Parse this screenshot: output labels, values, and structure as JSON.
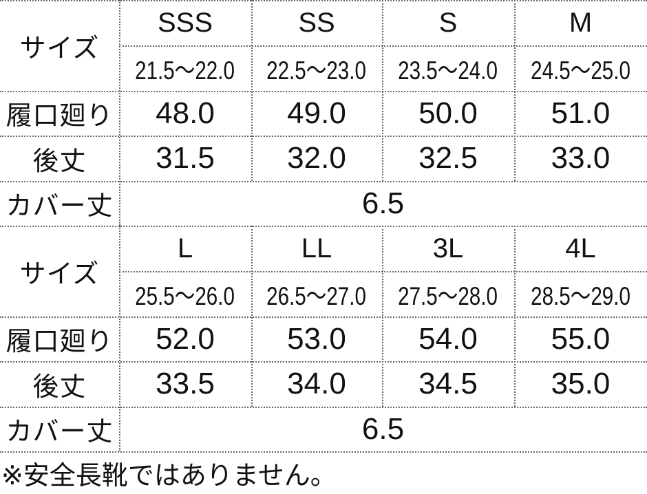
{
  "labels": {
    "size": "サイズ",
    "opening": "履口廻り",
    "back_height": "後丈",
    "cover_height": "カバー丈"
  },
  "blocks": [
    {
      "sizes": [
        "SSS",
        "SS",
        "S",
        "M"
      ],
      "ranges": [
        "21.5～22.0",
        "22.5～23.0",
        "23.5～24.0",
        "24.5～25.0"
      ],
      "opening": [
        "48.0",
        "49.0",
        "50.0",
        "51.0"
      ],
      "back_height": [
        "31.5",
        "32.0",
        "32.5",
        "33.0"
      ],
      "cover_height": "6.5"
    },
    {
      "sizes": [
        "L",
        "LL",
        "3L",
        "4L"
      ],
      "ranges": [
        "25.5～26.0",
        "26.5～27.0",
        "27.5～28.0",
        "28.5～29.0"
      ],
      "opening": [
        "52.0",
        "53.0",
        "54.0",
        "55.0"
      ],
      "back_height": [
        "33.5",
        "34.0",
        "34.5",
        "35.0"
      ],
      "cover_height": "6.5"
    }
  ],
  "note": "※安全長靴ではありません。"
}
